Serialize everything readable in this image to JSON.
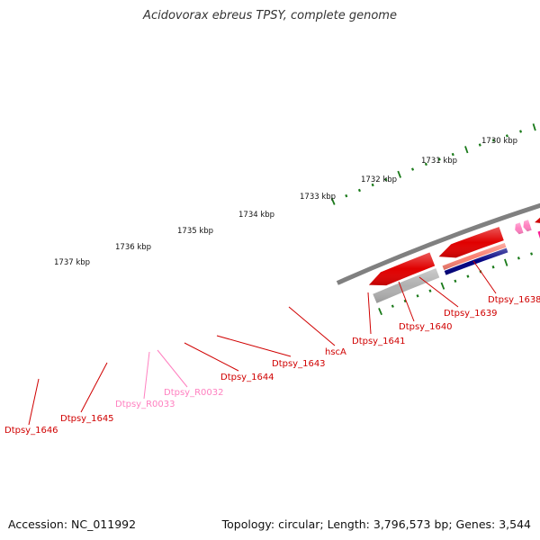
{
  "title": "Acidovorax ebreus TPSY, complete genome",
  "footer": {
    "accession": "Accession: NC_011992",
    "summary": "Topology: circular; Length: 3,796,573 bp; Genes: 3,544"
  },
  "scale_labels": [
    "1737 kbp",
    "1736 kbp",
    "1735 kbp",
    "1734 kbp",
    "1733 kbp",
    "1732 kbp",
    "1731 kbp",
    "1730 kbp"
  ],
  "gene_labels": [
    {
      "text": "Dtpsy_1638",
      "kind": "gene"
    },
    {
      "text": "Dtpsy_1639",
      "kind": "gene"
    },
    {
      "text": "Dtpsy_1640",
      "kind": "gene"
    },
    {
      "text": "Dtpsy_1641",
      "kind": "gene"
    },
    {
      "text": "hscA",
      "kind": "gene"
    },
    {
      "text": "Dtpsy_1643",
      "kind": "gene"
    },
    {
      "text": "Dtpsy_1644",
      "kind": "gene"
    },
    {
      "text": "Dtpsy_R0032",
      "kind": "rna"
    },
    {
      "text": "Dtpsy_R0033",
      "kind": "rna"
    },
    {
      "text": "Dtpsy_1645",
      "kind": "gene"
    },
    {
      "text": "Dtpsy_1646",
      "kind": "gene"
    }
  ],
  "colors": {
    "backbone": "#808080",
    "gene": "#e00000",
    "gene_label": "#d00000",
    "rna": "#ff80c0",
    "tick": "#1a7a1a",
    "category_magenta": "#ff1493",
    "category_cyan": "#00e5ff",
    "category_khaki": "#bdb76b",
    "category_grey": "#6b6b6b",
    "category_steelblue": "#4682b4",
    "category_orange": "#ff8c00",
    "category_salmon": "#fa8072",
    "category_navy": "#000080",
    "category_silver": "#b0b0b0"
  }
}
